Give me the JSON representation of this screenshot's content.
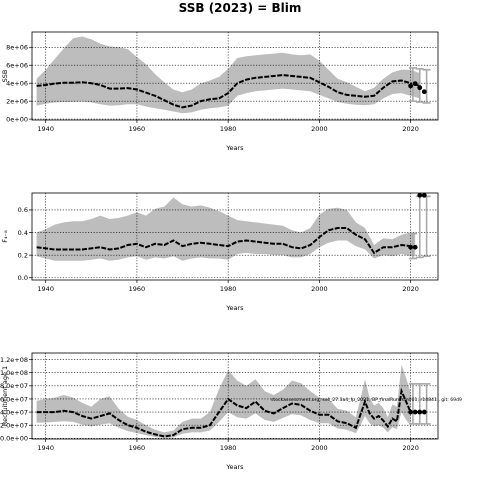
{
  "title": "SSB (2023) = Blim",
  "colors": {
    "band": "#bdbdbd",
    "line": "#000000",
    "bar": "#a9a9a9",
    "grid": "#000000"
  },
  "chart_data": [
    {
      "type": "line",
      "panel": "ssb",
      "ylabel": "SSB",
      "xlabel": "Years",
      "xlim": [
        1937,
        2026
      ],
      "ylim": [
        -100000,
        9700000
      ],
      "xticks": [
        1940,
        1960,
        1980,
        2000,
        2020
      ],
      "xtick_labels": [
        "1940",
        "1960",
        "1980",
        "2000",
        "2020"
      ],
      "yticks": [
        0,
        2000000,
        4000000,
        6000000,
        8000000
      ],
      "ytick_labels": [
        "0e+00",
        "2e+06",
        "4e+06",
        "6e+06",
        "8e+06"
      ],
      "grid": true,
      "series": [
        {
          "x": [
            1938,
            1940,
            1942,
            1944,
            1946,
            1948,
            1950,
            1952,
            1954,
            1956,
            1958,
            1960,
            1962,
            1964,
            1966,
            1968,
            1970,
            1972,
            1974,
            1976,
            1978,
            1980,
            1982,
            1984,
            1986,
            1988,
            1990,
            1992,
            1994,
            1996,
            1998,
            2000,
            2002,
            2004,
            2006,
            2008,
            2010,
            2012,
            2014,
            2016,
            2018,
            2020,
            2022
          ],
          "median": [
            3700000,
            3800000,
            3950000,
            4050000,
            4050000,
            4100000,
            4000000,
            3800000,
            3400000,
            3400000,
            3450000,
            3300000,
            2950000,
            2600000,
            2100000,
            1600000,
            1300000,
            1500000,
            2000000,
            2200000,
            2300000,
            2900000,
            4000000,
            4400000,
            4600000,
            4700000,
            4800000,
            4900000,
            4800000,
            4700000,
            4600000,
            4100000,
            3600000,
            3000000,
            2700000,
            2600000,
            2500000,
            2600000,
            3500000,
            4200000,
            4300000,
            4000000,
            3700000
          ],
          "lower": [
            1500000,
            1700000,
            1850000,
            1900000,
            1900000,
            1950000,
            1850000,
            1650000,
            1500000,
            1550000,
            1650000,
            1650000,
            1400000,
            1200000,
            1050000,
            850000,
            650000,
            750000,
            1050000,
            1200000,
            1300000,
            1500000,
            2600000,
            2900000,
            3100000,
            3200000,
            3300000,
            3400000,
            3300000,
            3200000,
            3100000,
            2700000,
            2300000,
            1900000,
            1700000,
            1600000,
            1550000,
            1650000,
            2300000,
            2800000,
            2900000,
            2600000,
            2300000
          ],
          "upper": [
            4500000,
            5500000,
            6700000,
            7900000,
            9000000,
            9200000,
            8900000,
            8400000,
            8100000,
            8000000,
            7800000,
            6900000,
            6100000,
            5000000,
            4100000,
            3300000,
            3000000,
            3300000,
            4000000,
            4300000,
            4700000,
            5600000,
            6800000,
            7000000,
            7100000,
            7200000,
            7300000,
            7400000,
            7200000,
            7100000,
            7200000,
            6500000,
            5500000,
            4500000,
            4100000,
            3600000,
            3100000,
            3500000,
            4500000,
            5200000,
            5500000,
            5500000,
            5100000
          ]
        }
      ],
      "points": [
        {
          "x": 2020,
          "y": 3700000
        },
        {
          "x": 2021,
          "y": 3950000
        },
        {
          "x": 2022,
          "y": 3500000
        },
        {
          "x": 2023,
          "y": 3050000
        }
      ],
      "intervals": [
        {
          "x": 2020.5,
          "low": 2000000,
          "high": 5700000
        },
        {
          "x": 2022.0,
          "low": 1900000,
          "high": 5600000
        },
        {
          "x": 2023.5,
          "low": 1800000,
          "high": 5500000
        }
      ]
    },
    {
      "type": "line",
      "panel": "f",
      "ylabel": "F₄₋₈",
      "xlabel": "Years",
      "xlim": [
        1937,
        2026
      ],
      "ylim": [
        -0.02,
        0.75
      ],
      "xticks": [
        1940,
        1960,
        1980,
        2000,
        2020
      ],
      "xtick_labels": [
        "1940",
        "1960",
        "1980",
        "2000",
        "2020"
      ],
      "yticks": [
        0.0,
        0.2,
        0.4,
        0.6
      ],
      "ytick_labels": [
        "0.0",
        "0.2",
        "0.4",
        "0.6"
      ],
      "grid": true,
      "series": [
        {
          "x": [
            1938,
            1940,
            1942,
            1944,
            1946,
            1948,
            1950,
            1952,
            1954,
            1956,
            1958,
            1960,
            1962,
            1964,
            1966,
            1968,
            1970,
            1972,
            1974,
            1976,
            1978,
            1980,
            1982,
            1984,
            1986,
            1988,
            1990,
            1992,
            1994,
            1996,
            1998,
            2000,
            2002,
            2004,
            2006,
            2008,
            2010,
            2012,
            2014,
            2016,
            2018,
            2020,
            2021
          ],
          "median": [
            0.27,
            0.26,
            0.25,
            0.25,
            0.25,
            0.25,
            0.26,
            0.27,
            0.25,
            0.26,
            0.29,
            0.3,
            0.27,
            0.3,
            0.29,
            0.33,
            0.28,
            0.3,
            0.31,
            0.3,
            0.29,
            0.28,
            0.32,
            0.33,
            0.32,
            0.31,
            0.3,
            0.3,
            0.27,
            0.26,
            0.29,
            0.36,
            0.42,
            0.44,
            0.44,
            0.38,
            0.34,
            0.22,
            0.27,
            0.27,
            0.29,
            0.28,
            0.27
          ],
          "lower": [
            0.19,
            0.17,
            0.15,
            0.15,
            0.15,
            0.15,
            0.16,
            0.17,
            0.15,
            0.16,
            0.18,
            0.19,
            0.16,
            0.18,
            0.17,
            0.19,
            0.15,
            0.17,
            0.18,
            0.17,
            0.17,
            0.16,
            0.21,
            0.22,
            0.21,
            0.21,
            0.2,
            0.2,
            0.18,
            0.18,
            0.21,
            0.27,
            0.31,
            0.33,
            0.33,
            0.28,
            0.25,
            0.17,
            0.2,
            0.19,
            0.21,
            0.19,
            0.19
          ],
          "upper": [
            0.4,
            0.43,
            0.47,
            0.49,
            0.5,
            0.5,
            0.52,
            0.55,
            0.52,
            0.53,
            0.55,
            0.58,
            0.55,
            0.61,
            0.63,
            0.71,
            0.65,
            0.63,
            0.64,
            0.62,
            0.59,
            0.55,
            0.51,
            0.5,
            0.49,
            0.48,
            0.47,
            0.46,
            0.42,
            0.4,
            0.44,
            0.56,
            0.61,
            0.62,
            0.6,
            0.49,
            0.44,
            0.29,
            0.35,
            0.34,
            0.38,
            0.4,
            0.4
          ]
        }
      ],
      "points": [
        {
          "x": 2020,
          "y": 0.27
        },
        {
          "x": 2021,
          "y": 0.27
        },
        {
          "x": 2022,
          "y": 0.73
        },
        {
          "x": 2023,
          "y": 0.73
        }
      ],
      "intervals": [
        {
          "x": 2020.5,
          "low": 0.17,
          "high": 0.39
        },
        {
          "x": 2022.0,
          "low": 0.18,
          "high": 0.72
        },
        {
          "x": 2023.5,
          "low": 0.19,
          "high": 0.72
        }
      ]
    },
    {
      "type": "line",
      "panel": "recruitment",
      "ylabel": "Recruitment age 1",
      "xlabel": "Years",
      "xlim": [
        1937,
        2026
      ],
      "ylim": [
        -1000000,
        130000000
      ],
      "xticks": [
        1940,
        1960,
        1980,
        2000,
        2020
      ],
      "xtick_labels": [
        "1940",
        "1960",
        "1980",
        "2000",
        "2020"
      ],
      "yticks": [
        0,
        20000000,
        40000000,
        60000000,
        80000000,
        100000000,
        120000000
      ],
      "ytick_labels": [
        "0.0e+00",
        "2.0e+07",
        "4.0e+07",
        "6.0e+07",
        "8.0e+07",
        "1.0e+08",
        "1.2e+08"
      ],
      "grid": true,
      "annotation": "stockassessment.org, ss4_27.3a4_fp_2021, BP_finalRun, sm001, r14841 , git: 69d9",
      "series": [
        {
          "x": [
            1938,
            1940,
            1942,
            1944,
            1946,
            1948,
            1950,
            1952,
            1954,
            1956,
            1958,
            1960,
            1962,
            1964,
            1966,
            1968,
            1970,
            1972,
            1974,
            1976,
            1978,
            1980,
            1982,
            1984,
            1986,
            1988,
            1990,
            1992,
            1994,
            1996,
            1998,
            2000,
            2002,
            2004,
            2006,
            2008,
            2009,
            2010,
            2011,
            2012,
            2013,
            2014,
            2015,
            2016,
            2017,
            2018,
            2019,
            2020
          ],
          "median": [
            40000000,
            40000000,
            40000000,
            42000000,
            40000000,
            34000000,
            30000000,
            34000000,
            38000000,
            28000000,
            20000000,
            16000000,
            10000000,
            6000000,
            3000000,
            5000000,
            14000000,
            16000000,
            16000000,
            20000000,
            40000000,
            60000000,
            50000000,
            46000000,
            56000000,
            42000000,
            38000000,
            46000000,
            53000000,
            51000000,
            42000000,
            36000000,
            36000000,
            26000000,
            23000000,
            16000000,
            36000000,
            56000000,
            38000000,
            30000000,
            34000000,
            27000000,
            18000000,
            30000000,
            26000000,
            72000000,
            56000000,
            40000000
          ],
          "lower": [
            24000000,
            24000000,
            25000000,
            26000000,
            25000000,
            21000000,
            18000000,
            21000000,
            23000000,
            16000000,
            11000000,
            8000000,
            5000000,
            2000000,
            500000,
            1500000,
            7000000,
            9000000,
            9000000,
            12000000,
            25000000,
            40000000,
            32000000,
            30000000,
            38000000,
            28000000,
            25000000,
            31000000,
            37000000,
            35000000,
            28000000,
            23000000,
            23000000,
            15000000,
            13000000,
            8000000,
            20000000,
            34000000,
            23000000,
            18000000,
            20000000,
            16000000,
            9000000,
            17000000,
            14000000,
            40000000,
            28000000,
            20000000
          ],
          "upper": [
            57000000,
            60000000,
            62000000,
            66000000,
            62000000,
            54000000,
            48000000,
            60000000,
            64000000,
            45000000,
            33000000,
            28000000,
            20000000,
            13000000,
            9000000,
            12000000,
            25000000,
            30000000,
            30000000,
            40000000,
            75000000,
            104000000,
            88000000,
            80000000,
            90000000,
            72000000,
            66000000,
            74000000,
            88000000,
            84000000,
            72000000,
            62000000,
            60000000,
            45000000,
            42000000,
            32000000,
            60000000,
            90000000,
            62000000,
            50000000,
            54000000,
            46000000,
            32000000,
            52000000,
            48000000,
            112000000,
            92000000,
            70000000
          ]
        }
      ],
      "points": [
        {
          "x": 2020,
          "y": 40000000
        },
        {
          "x": 2021,
          "y": 40000000
        },
        {
          "x": 2022,
          "y": 40000000
        },
        {
          "x": 2023,
          "y": 40000000
        }
      ],
      "intervals": [
        {
          "x": 2020.5,
          "low": 22000000,
          "high": 83000000
        },
        {
          "x": 2022.0,
          "low": 22000000,
          "high": 83000000
        },
        {
          "x": 2023.5,
          "low": 22000000,
          "high": 83000000
        }
      ]
    }
  ]
}
